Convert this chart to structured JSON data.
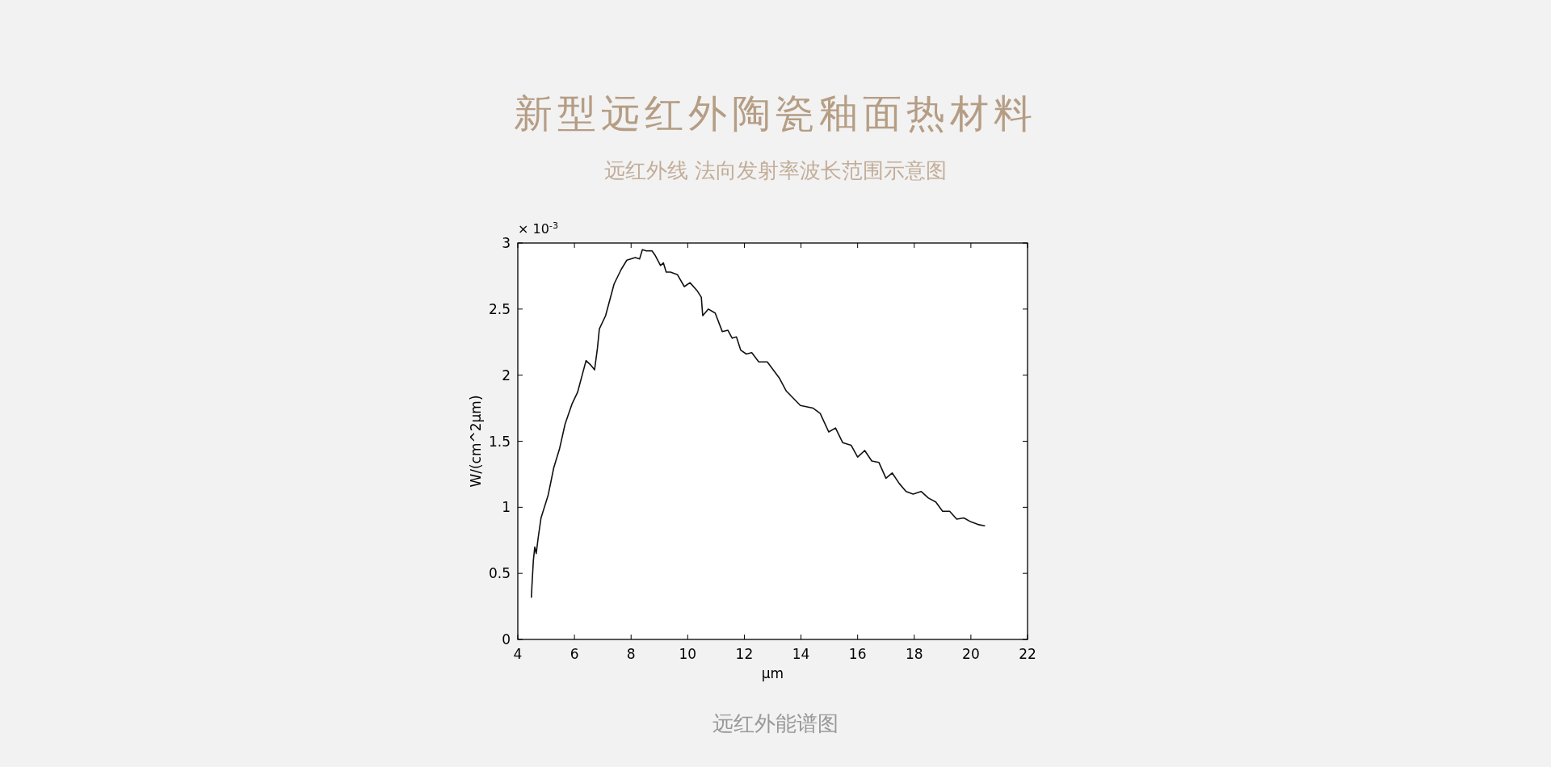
{
  "chart_data": {
    "type": "line",
    "title": "新型远红外陶瓷釉面热材料",
    "subtitle": "远红外线 法向发射率波长范围示意图",
    "xlabel": "μm",
    "ylabel": "W/(cm^2μm)",
    "annotations": [
      "× 10$^{-3}$",
      "远红外能谱图"
    ],
    "xlim": [
      4,
      22
    ],
    "xticks": [
      4,
      6,
      8,
      10,
      12,
      14,
      16,
      18,
      20,
      22
    ],
    "ylim": [
      0,
      3
    ],
    "yticks": [
      0,
      0.5,
      1,
      1.5,
      2,
      2.5,
      3
    ],
    "series": [
      {
        "color": "#111111",
        "x": [
          4.48,
          4.5,
          4.55,
          4.6,
          4.65,
          4.72,
          4.82,
          5.07,
          5.27,
          5.47,
          5.67,
          5.91,
          6.11,
          6.41,
          6.56,
          6.71,
          6.81,
          6.88,
          7.1,
          7.4,
          7.65,
          7.85,
          8.15,
          8.3,
          8.4,
          8.54,
          8.74,
          8.84,
          9.04,
          9.14,
          9.24,
          9.39,
          9.64,
          9.88,
          10.08,
          10.33,
          10.48,
          10.53,
          10.73,
          10.97,
          11.22,
          11.42,
          11.57,
          11.72,
          11.87,
          12.07,
          12.26,
          12.51,
          12.81,
          13.23,
          13.48,
          13.98,
          14.43,
          14.68,
          14.98,
          15.22,
          15.47,
          15.77,
          16.0,
          16.25,
          16.5,
          16.75,
          17.0,
          17.22,
          17.47,
          17.71,
          17.96,
          18.24,
          18.5,
          18.76,
          19.0,
          19.25,
          19.5,
          19.75,
          20.0,
          20.25,
          20.48
        ],
        "values": [
          0.32,
          0.41,
          0.6,
          0.7,
          0.65,
          0.77,
          0.92,
          1.09,
          1.3,
          1.44,
          1.63,
          1.78,
          1.87,
          2.11,
          2.08,
          2.04,
          2.2,
          2.35,
          2.45,
          2.69,
          2.8,
          2.87,
          2.89,
          2.88,
          2.95,
          2.94,
          2.94,
          2.91,
          2.83,
          2.85,
          2.78,
          2.78,
          2.76,
          2.67,
          2.7,
          2.64,
          2.59,
          2.45,
          2.5,
          2.47,
          2.33,
          2.34,
          2.28,
          2.29,
          2.19,
          2.16,
          2.17,
          2.1,
          2.1,
          1.98,
          1.88,
          1.77,
          1.75,
          1.71,
          1.57,
          1.6,
          1.49,
          1.47,
          1.38,
          1.43,
          1.35,
          1.34,
          1.22,
          1.26,
          1.18,
          1.12,
          1.1,
          1.12,
          1.07,
          1.04,
          0.97,
          0.97,
          0.91,
          0.92,
          0.89,
          0.87,
          0.86
        ]
      }
    ]
  }
}
